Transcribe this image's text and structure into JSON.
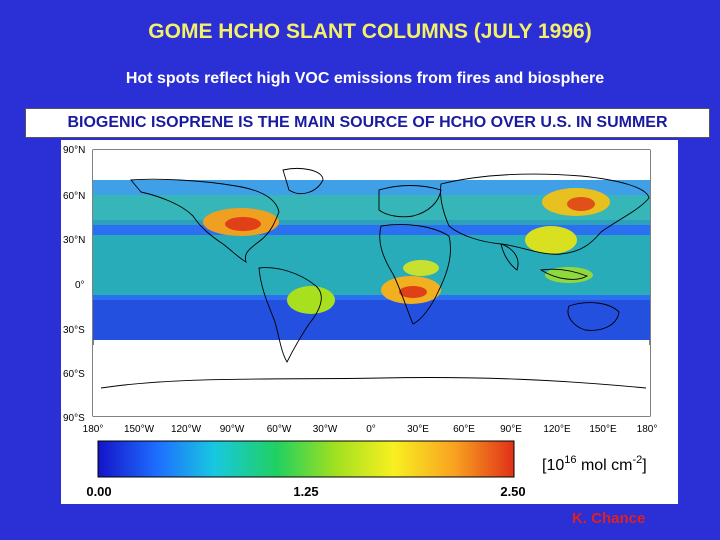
{
  "title": "GOME HCHO SLANT COLUMNS (JULY 1996)",
  "subtitle": "Hot spots reflect high VOC emissions from fires and biosphere",
  "callout": "BIOGENIC ISOPRENE IS THE MAIN SOURCE OF HCHO OVER U.S. IN SUMMER",
  "map": {
    "lat_labels": [
      "90°N",
      "60°N",
      "30°N",
      "0°",
      "30°S",
      "60°S",
      "90°S"
    ],
    "lon_labels": [
      "180°",
      "150°W",
      "120°W",
      "90°W",
      "60°W",
      "30°W",
      "0°",
      "30°E",
      "60°E",
      "90°E",
      "120°E",
      "150°E",
      "180°"
    ],
    "colorbar": {
      "min_label": "0.00",
      "mid_label": "1.25",
      "max_label": "2.50",
      "units_base": "[10",
      "units_exp": "16",
      "units_rest": " mol cm",
      "units_exp2": "-2",
      "units_close": "]",
      "colors": [
        "#1414c8",
        "#1e6cff",
        "#18c8e0",
        "#20d060",
        "#a0e020",
        "#f8f020",
        "#f8a020",
        "#e03018"
      ]
    }
  },
  "credit": "K. Chance"
}
